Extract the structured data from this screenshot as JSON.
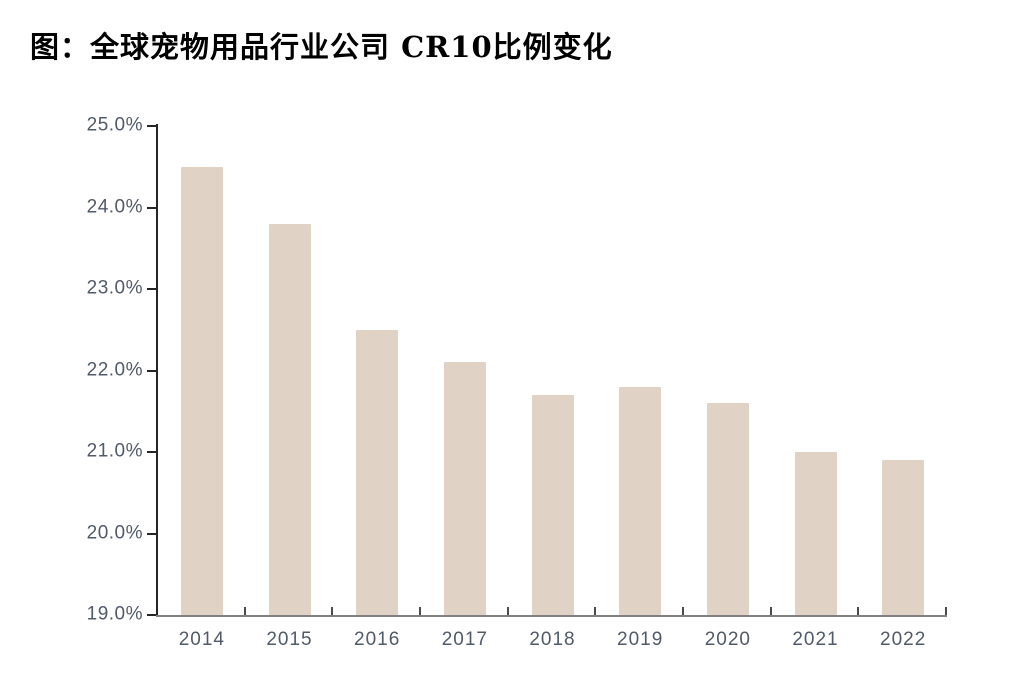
{
  "title": "图：全球宠物用品行业公司 CR10比例变化",
  "colors": {
    "bar": "#E0D2C4",
    "axis_y": "#262626",
    "axis_x": "#808080",
    "tick": "#4A4A4A",
    "label": "#515A68",
    "title": "#000000"
  },
  "chart_data": {
    "type": "bar",
    "title": "图：全球宠物用品行业公司 CR10比例变化",
    "categories": [
      "2014",
      "2015",
      "2016",
      "2017",
      "2018",
      "2019",
      "2020",
      "2021",
      "2022"
    ],
    "values": [
      24.5,
      23.8,
      22.5,
      22.1,
      21.7,
      21.8,
      21.6,
      21.0,
      20.9
    ],
    "unit": "%",
    "xlabel": "",
    "ylabel": "",
    "ylim": [
      19.0,
      25.0
    ],
    "y_tick_step": 1.0,
    "y_tick_labels": [
      "25.0%",
      "24.0%",
      "23.0%",
      "22.0%",
      "21.0%",
      "20.0%",
      "19.0%"
    ],
    "grid": false,
    "legend": "none",
    "bar_color": "#E0D2C4"
  }
}
